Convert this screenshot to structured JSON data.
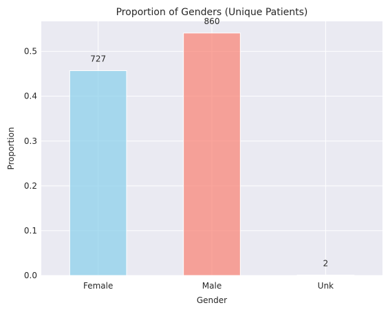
{
  "chart_data": {
    "type": "bar",
    "title": "Proportion of Genders (Unique Patients)",
    "xlabel": "Gender",
    "ylabel": "Proportion",
    "categories": [
      "Female",
      "Male",
      "Unk"
    ],
    "values": [
      0.457,
      0.541,
      0.001
    ],
    "counts": [
      "727",
      "860",
      "2"
    ],
    "colors": [
      "#87ceeb",
      "#fa8072",
      "#b0c4de"
    ],
    "ylim": [
      0,
      0.567
    ],
    "yticks": [
      "0.0",
      "0.1",
      "0.2",
      "0.3",
      "0.4",
      "0.5"
    ],
    "grid": true
  }
}
